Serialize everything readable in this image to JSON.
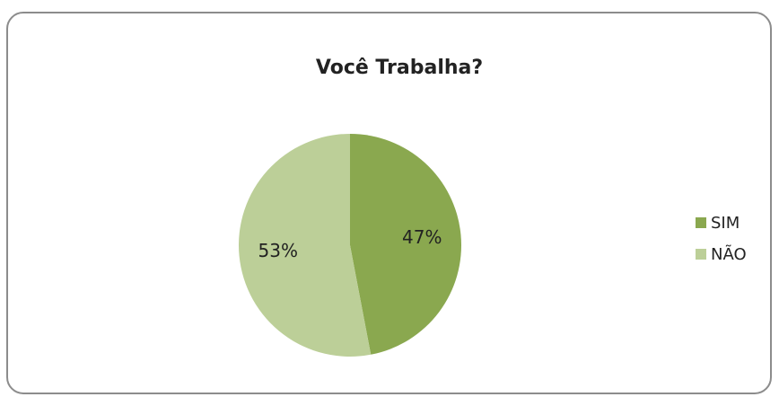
{
  "chart_data": {
    "type": "pie",
    "title": "Você Trabalha?",
    "categories": [
      "SIM",
      "NÃO"
    ],
    "values": [
      47,
      53
    ],
    "value_labels": [
      "47%",
      "53%"
    ],
    "colors": [
      "#8aa84f",
      "#bccf98"
    ],
    "legend": "right"
  }
}
